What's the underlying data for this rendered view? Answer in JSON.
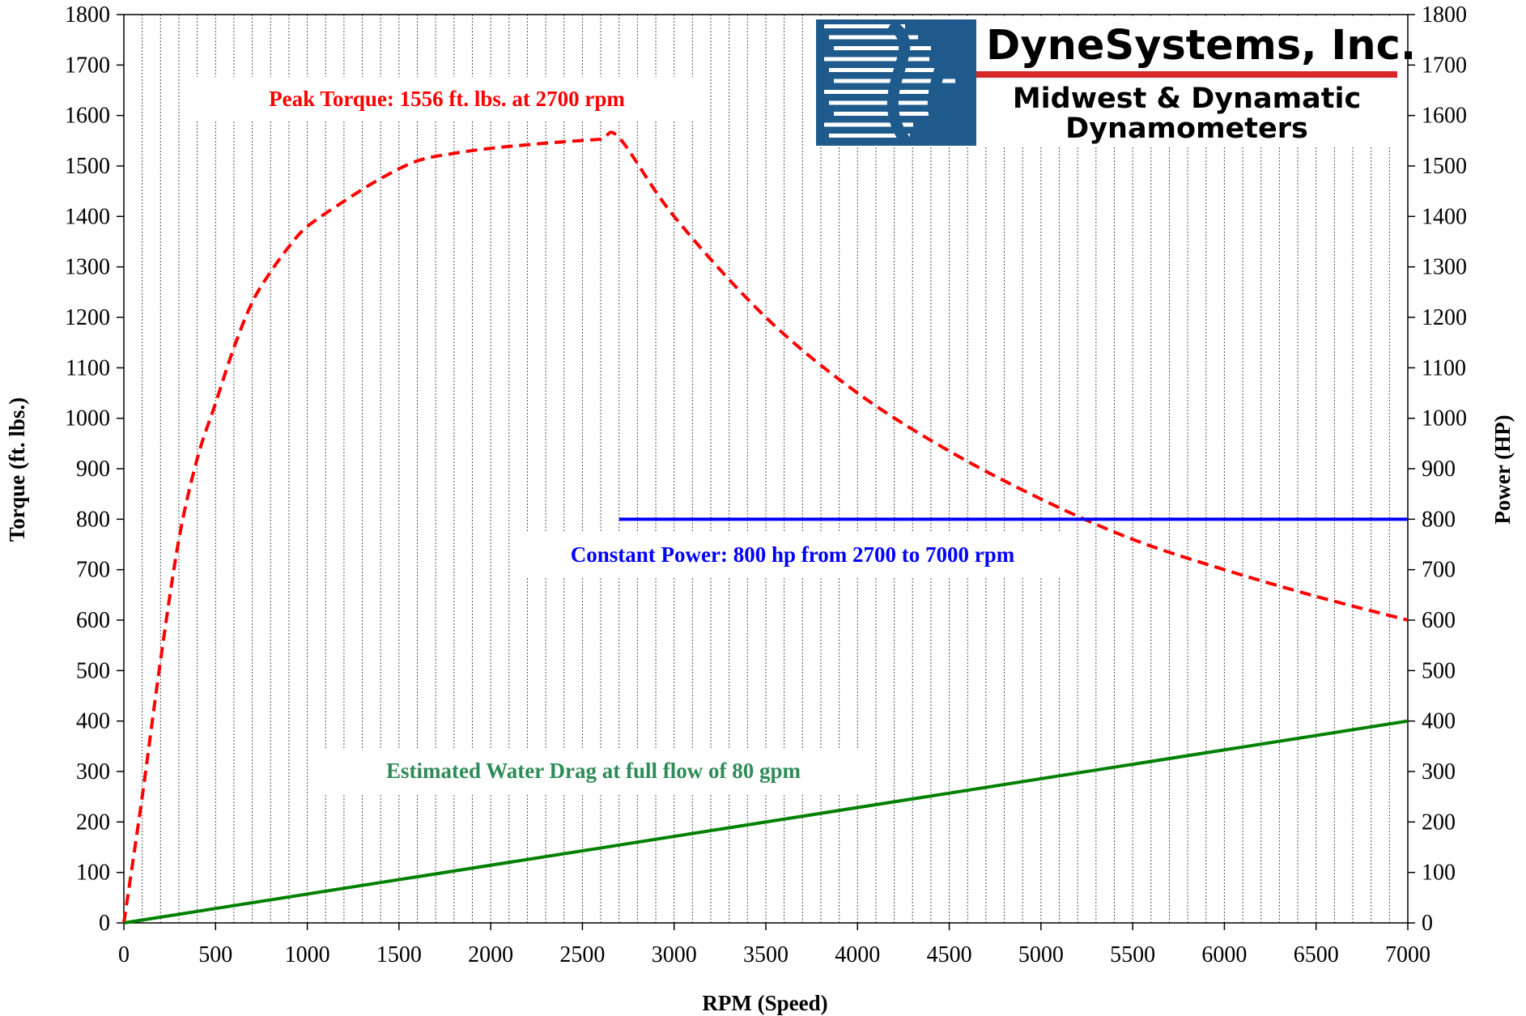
{
  "chart_data": {
    "type": "line",
    "x": [
      0,
      100,
      200,
      300,
      400,
      500,
      600,
      700,
      800,
      900,
      1000,
      1200,
      1400,
      1600,
      1800,
      2000,
      2200,
      2400,
      2600,
      2700,
      3000,
      3500,
      4000,
      4500,
      5000,
      5500,
      6000,
      6500,
      7000
    ],
    "series": [
      {
        "name": "Peak Torque",
        "axis": "left",
        "style": "dashed",
        "color": "#ff0000",
        "values": [
          0,
          250,
          520,
          760,
          920,
          1030,
          1140,
          1230,
          1290,
          1340,
          1380,
          1430,
          1475,
          1510,
          1525,
          1535,
          1542,
          1548,
          1553,
          1556,
          1400,
          1200,
          1050,
          935,
          840,
          760,
          700,
          647,
          600
        ]
      },
      {
        "name": "Constant Power",
        "axis": "right",
        "style": "solid",
        "color": "#0000ff",
        "points": [
          [
            2700,
            800
          ],
          [
            7000,
            800
          ]
        ]
      },
      {
        "name": "Estimated Water Drag",
        "axis": "right",
        "style": "solid",
        "color": "#008000",
        "points": [
          [
            0,
            0
          ],
          [
            7000,
            400
          ]
        ]
      }
    ],
    "xlabel": "RPM (Speed)",
    "ylabel_left": "Torque (ft. lbs.)",
    "ylabel_right": "Power (HP)",
    "xlim": [
      0,
      7000
    ],
    "ylim": [
      0,
      1800
    ],
    "xticks": [
      "0",
      "500",
      "1000",
      "1500",
      "2000",
      "2500",
      "3000",
      "3500",
      "4000",
      "4500",
      "5000",
      "5500",
      "6000",
      "6500",
      "7000"
    ],
    "yticks": [
      "0",
      "100",
      "200",
      "300",
      "400",
      "500",
      "600",
      "700",
      "800",
      "900",
      "1000",
      "1100",
      "1200",
      "1300",
      "1400",
      "1500",
      "1600",
      "1700",
      "1800"
    ],
    "grid": {
      "vertical_minor_step": 100,
      "horizontal": false
    },
    "annotations": [
      {
        "text": "Peak Torque: 1556 ft. lbs. at 2700 rpm",
        "color": "#ff0000"
      },
      {
        "text": "Constant Power: 800 hp from 2700 to 7000 rpm",
        "color": "#0000ff"
      },
      {
        "text": "Estimated Water Drag at full flow of 80 gpm",
        "color": "#2e8b57"
      }
    ]
  },
  "logo": {
    "company": "DyneSystems, Inc.",
    "line1": "Midwest & Dynamatic",
    "line2": "Dynamometers",
    "bg_color": "#1f5a8c",
    "rule_color": "#d62828"
  }
}
